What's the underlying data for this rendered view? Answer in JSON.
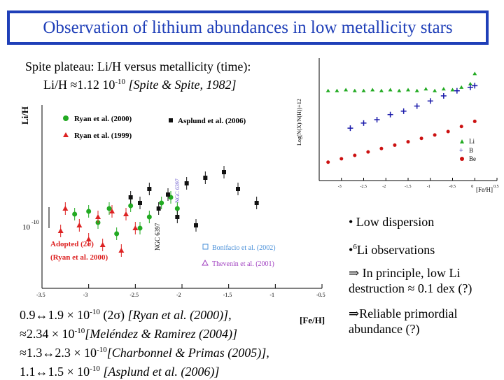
{
  "title": "Observation of lithium abundances in low metallicity stars",
  "subtitle": {
    "line1": "Spite plateau: Li/H versus metallicity (time):",
    "line2_pre": "Li/H ≈1.12 10",
    "line2_exp": "-10",
    "line2_ref": "[Spite & Spite, 1982]"
  },
  "bullets": {
    "b1": "• Low dispersion",
    "b2_pre": "•",
    "b2_sup": "6",
    "b2_post": "Li observations",
    "b3_line1": "⇒ In principle, low Li",
    "b3_line2": "destruction ≈ 0.1 dex (?)",
    "b4_line1": "⇒Reliable primordial",
    "b4_line2": "abundance (?)"
  },
  "references": [
    {
      "pre": "0.9↔1.9 × 10",
      "exp": "-10",
      "post": " (2σ) ",
      "ref": "[Ryan et al. (2000)],"
    },
    {
      "pre": "≈2.34 × 10",
      "exp": "-10",
      "post": "",
      "ref": "[Meléndez & Ramirez (2004)]"
    },
    {
      "pre": "≈1.3↔2.3 × 10",
      "exp": "-10",
      "post": "",
      "ref": "[Charbonnel & Primas (2005)],"
    },
    {
      "pre": "1.1↔1.5 × 10",
      "exp": "-10",
      "post": " ",
      "ref": "[Asplund et al. (2006)]"
    }
  ],
  "chart_data": [
    {
      "type": "scatter",
      "title": "",
      "xlabel": "[Fe/H]",
      "ylabel": "Li/H",
      "xlim": [
        -3.5,
        -0.5
      ],
      "xticks": [
        "-3.5",
        "-3",
        "-2.5",
        "-2",
        "-1.5",
        "-1",
        "-0.5"
      ],
      "ytick_label": "10",
      "ytick_exp": "-10",
      "legend": [
        "Ryan et al. (2000)",
        "Ryan et al. (1999)",
        "Asplund et al. (2006)"
      ],
      "annotations": {
        "adopted_line1": "Adopted (2σ)",
        "adopted_line2": "(Ryan et al. 2000)",
        "ngc": "NGC 6397",
        "bonifacio": "Bonifacio et al. (2002)",
        "thevenin": "Thevenin et al. (2001)",
        "cluster_label": "NGC 6397"
      },
      "series": [
        {
          "name": "Ryan et al. (2000)",
          "marker": "circle",
          "color": "#22aa22",
          "x": [
            -3.15,
            -3.0,
            -2.9,
            -2.78,
            -2.7,
            -2.55,
            -2.45,
            -2.35,
            -2.22,
            -2.12,
            -2.05
          ],
          "y": [
            -9.99,
            -9.98,
            -10.02,
            -9.97,
            -10.06,
            -9.96,
            -10.04,
            -10.0,
            -9.95,
            -9.93,
            -9.97
          ]
        },
        {
          "name": "Ryan et al. (1999)",
          "marker": "triangle",
          "color": "#dd2222",
          "x": [
            -3.3,
            -3.25,
            -3.1,
            -3.0,
            -2.9,
            -2.85,
            -2.75,
            -2.65,
            -2.6,
            -2.5
          ],
          "y": [
            -10.05,
            -9.97,
            -10.03,
            -10.08,
            -10.0,
            -10.1,
            -9.98,
            -10.12,
            -9.99,
            -10.04
          ]
        },
        {
          "name": "Asplund et al. (2006)",
          "marker": "square",
          "color": "#111111",
          "x": [
            -2.55,
            -2.45,
            -2.35,
            -2.25,
            -2.15,
            -2.05,
            -1.95,
            -1.85,
            -1.75,
            -1.55,
            -1.4,
            -1.2
          ],
          "y": [
            -9.93,
            -9.95,
            -9.9,
            -9.97,
            -9.92,
            -10.0,
            -9.88,
            -10.03,
            -9.86,
            -9.84,
            -9.9,
            -9.95
          ]
        }
      ]
    },
    {
      "type": "scatter",
      "title": "",
      "xlabel": "[Fe/H]",
      "ylabel": "Log(N(X)/N(H))+12",
      "xlim": [
        -3.5,
        0.5
      ],
      "xticks": [
        "-3",
        "-2.5",
        "-2",
        "-1.5",
        "-1",
        "-0.5",
        "0",
        "0.5"
      ],
      "legend": [
        "Li",
        "B",
        "Be"
      ],
      "series": [
        {
          "name": "Li",
          "marker": "triangle",
          "color": "#22aa22",
          "x": [
            -3.3,
            -3.1,
            -2.9,
            -2.7,
            -2.5,
            -2.3,
            -2.1,
            -1.9,
            -1.7,
            -1.5,
            -1.3,
            -1.1,
            -0.9,
            -0.7,
            -0.5,
            -0.3,
            -0.1,
            0.0
          ],
          "y": [
            2.2,
            2.2,
            2.25,
            2.2,
            2.2,
            2.25,
            2.2,
            2.25,
            2.2,
            2.25,
            2.2,
            2.3,
            2.2,
            2.3,
            2.25,
            2.4,
            2.6,
            3.2
          ]
        },
        {
          "name": "B",
          "marker": "cross",
          "color": "#1a1aaa",
          "x": [
            -2.8,
            -2.5,
            -2.2,
            -1.9,
            -1.6,
            -1.3,
            -1.0,
            -0.7,
            -0.4,
            -0.1,
            0.0
          ],
          "y": [
            0.0,
            0.3,
            0.5,
            0.8,
            1.0,
            1.3,
            1.6,
            1.9,
            2.2,
            2.4,
            2.5
          ]
        },
        {
          "name": "Be",
          "marker": "circle",
          "color": "#cc1111",
          "x": [
            -3.3,
            -3.0,
            -2.7,
            -2.4,
            -2.1,
            -1.8,
            -1.5,
            -1.2,
            -0.9,
            -0.6,
            -0.3,
            0.0
          ],
          "y": [
            -2.0,
            -1.8,
            -1.6,
            -1.4,
            -1.2,
            -1.0,
            -0.8,
            -0.6,
            -0.4,
            -0.2,
            0.1,
            0.4
          ]
        }
      ]
    }
  ]
}
